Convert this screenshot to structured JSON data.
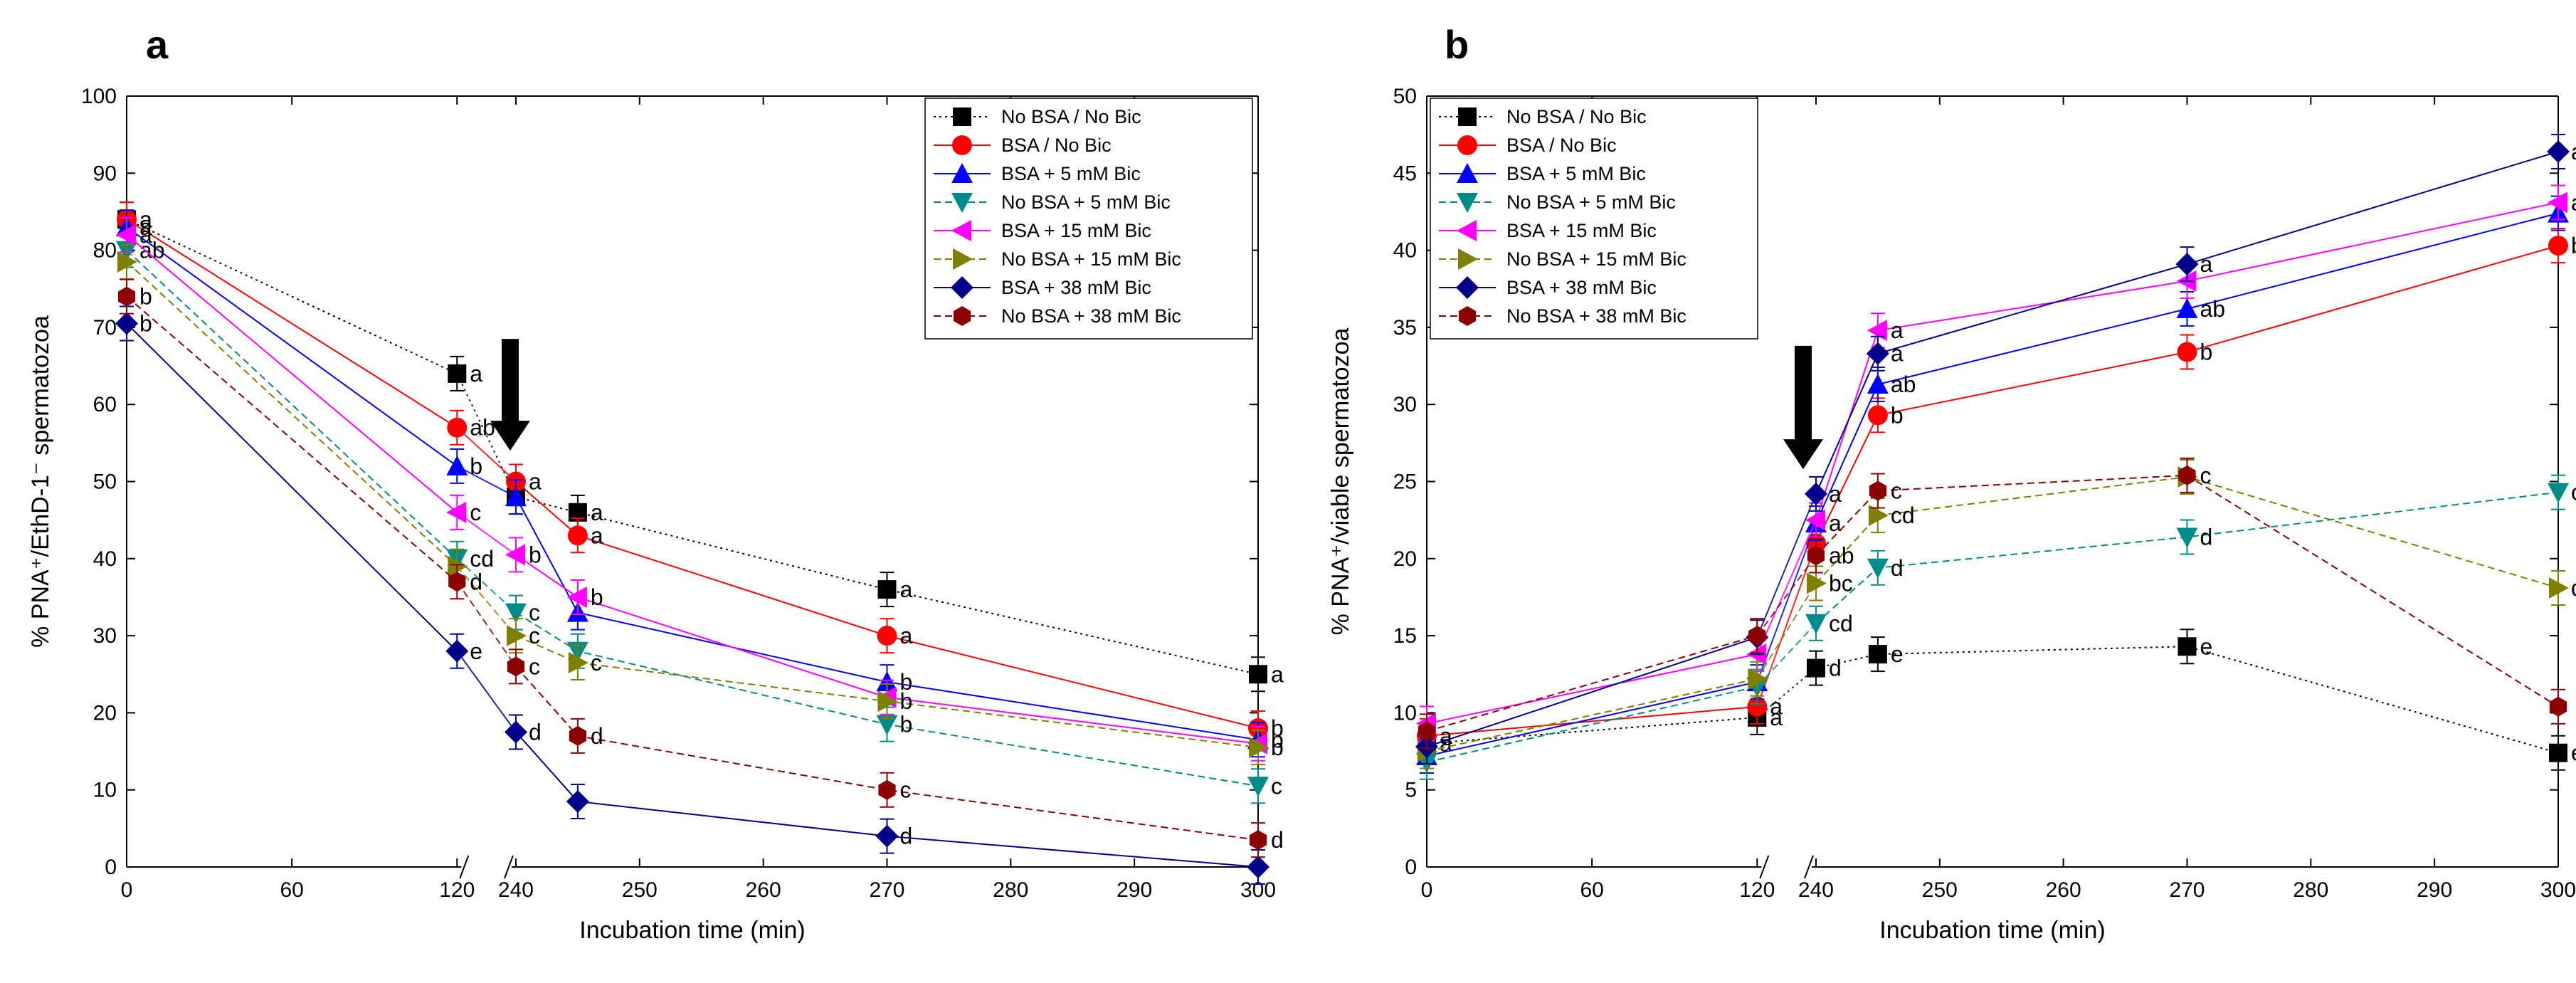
{
  "chart_data": [
    {
      "panel": "a",
      "type": "line",
      "ylabel": "% PNA⁺/EthD-1⁻ spermatozoa",
      "xlabel": "Incubation time (min)",
      "ylim": [
        0,
        100
      ],
      "yticks": [
        "0",
        "10",
        "20",
        "30",
        "40",
        "50",
        "60",
        "70",
        "80",
        "90",
        "100"
      ],
      "xticks": [
        "0",
        "60",
        "120",
        "240",
        "250",
        "260",
        "270",
        "280",
        "290",
        "300"
      ],
      "x": [
        0,
        120,
        240,
        245,
        270,
        300
      ],
      "legend": [
        "No BSA / No Bic",
        "BSA / No Bic",
        "BSA + 5 mM Bic",
        "No BSA + 5 mM Bic",
        "BSA + 15 mM Bic",
        "No BSA + 15 mM Bic",
        "BSA + 38 mM Bic",
        "No BSA  + 38 mM Bic"
      ],
      "series": [
        {
          "name": "No BSA / No Bic",
          "color": "#000000",
          "marker": "square",
          "dash": "dot",
          "values": [
            84,
            64,
            48,
            46,
            36,
            25
          ],
          "labels": [
            "a",
            "a",
            "",
            "a",
            "a",
            "a"
          ]
        },
        {
          "name": "BSA / No Bic",
          "color": "#ff0000",
          "marker": "circle",
          "dash": "solid",
          "values": [
            84,
            57,
            50,
            43,
            30,
            18
          ],
          "labels": [
            "a",
            "ab",
            "a",
            "a",
            "a",
            "b"
          ]
        },
        {
          "name": "BSA + 5 mM Bic",
          "color": "#0000ff",
          "marker": "triangle-up",
          "dash": "solid",
          "values": [
            83,
            52,
            48,
            33,
            24,
            16.5
          ],
          "labels": [
            "a",
            "b",
            "",
            "",
            "b",
            "b"
          ]
        },
        {
          "name": "No BSA + 5 mM Bic",
          "color": "#008b8b",
          "marker": "triangle-down",
          "dash": "dash",
          "values": [
            80,
            40,
            33,
            28,
            18.5,
            10.5
          ],
          "labels": [
            "ab",
            "cd",
            "c",
            "",
            "b",
            "c"
          ]
        },
        {
          "name": "BSA + 15 mM Bic",
          "color": "#ff00ff",
          "marker": "triangle-left",
          "dash": "solid",
          "values": [
            82,
            46,
            40.5,
            35,
            22,
            16
          ],
          "labels": [
            "a",
            "c",
            "b",
            "b",
            "",
            ""
          ]
        },
        {
          "name": "No BSA + 15 mM Bic",
          "color": "#808000",
          "marker": "triangle-right",
          "dash": "dash",
          "values": [
            78.5,
            39,
            30,
            26.5,
            21.5,
            15.5
          ],
          "labels": [
            "",
            "",
            "c",
            "c",
            "b",
            "b"
          ]
        },
        {
          "name": "BSA + 38 mM Bic",
          "color": "#00008b",
          "marker": "diamond",
          "dash": "solid",
          "values": [
            70.5,
            28,
            17.5,
            8.5,
            4,
            0
          ],
          "labels": [
            "b",
            "e",
            "d",
            "",
            "d",
            ""
          ]
        },
        {
          "name": "No BSA  + 38 mM Bic",
          "color": "#8b0000",
          "marker": "hexagon",
          "dash": "dash",
          "values": [
            74,
            37,
            26,
            17,
            10,
            3.5
          ],
          "labels": [
            "b",
            "d",
            "c",
            "d",
            "c",
            "d"
          ]
        }
      ]
    },
    {
      "panel": "b",
      "type": "line",
      "ylabel": "% PNA⁺/viable spermatozoa",
      "xlabel": "Incubation time (min)",
      "ylim": [
        0,
        50
      ],
      "yticks": [
        "0",
        "5",
        "10",
        "15",
        "20",
        "25",
        "30",
        "35",
        "40",
        "45",
        "50"
      ],
      "xticks": [
        "0",
        "60",
        "120",
        "240",
        "250",
        "260",
        "270",
        "280",
        "290",
        "300"
      ],
      "x": [
        0,
        120,
        240,
        245,
        270,
        300
      ],
      "legend": [
        "No BSA / No Bic",
        "BSA / No Bic",
        "BSA + 5 mM Bic",
        "No BSA + 5 mM Bic",
        "BSA + 15 mM Bic",
        "No BSA + 15 mM Bic",
        "BSA + 38 mM Bic",
        "No BSA  + 38 mM Bic"
      ],
      "series": [
        {
          "name": "No BSA / No Bic",
          "color": "#000000",
          "marker": "square",
          "dash": "dot",
          "values": [
            8,
            9.7,
            12.9,
            13.8,
            14.3,
            7.4
          ],
          "labels": [
            "a",
            "a",
            "d",
            "e",
            "e",
            "e"
          ]
        },
        {
          "name": "BSA / No Bic",
          "color": "#ff0000",
          "marker": "circle",
          "dash": "solid",
          "values": [
            8.5,
            10.4,
            21,
            29.3,
            33.4,
            40.3
          ],
          "labels": [
            "a",
            "a",
            "",
            "b",
            "b",
            "b"
          ]
        },
        {
          "name": "BSA + 5 mM Bic",
          "color": "#0000ff",
          "marker": "triangle-up",
          "dash": "solid",
          "values": [
            7.2,
            12,
            22.3,
            31.3,
            36.2,
            42.4
          ],
          "labels": [
            "",
            "",
            "a",
            "ab",
            "ab",
            ""
          ]
        },
        {
          "name": "No BSA + 5 mM Bic",
          "color": "#008b8b",
          "marker": "triangle-down",
          "dash": "dash",
          "values": [
            6.8,
            11.7,
            15.8,
            19.4,
            21.4,
            24.3
          ],
          "labels": [
            "",
            "",
            "cd",
            "d",
            "d",
            "c"
          ]
        },
        {
          "name": "BSA + 15 mM Bic",
          "color": "#ff00ff",
          "marker": "triangle-left",
          "dash": "solid",
          "values": [
            9.3,
            13.8,
            22.5,
            34.8,
            38,
            43.1
          ],
          "labels": [
            "",
            "",
            "",
            "a",
            "",
            "ab"
          ]
        },
        {
          "name": "No BSA + 15 mM Bic",
          "color": "#808000",
          "marker": "triangle-right",
          "dash": "dash",
          "values": [
            7.5,
            12.2,
            18.4,
            22.8,
            25.3,
            18.1
          ],
          "labels": [
            "",
            "",
            "bc",
            "cd",
            "",
            "d"
          ]
        },
        {
          "name": "BSA + 38 mM Bic",
          "color": "#00008b",
          "marker": "diamond",
          "dash": "solid",
          "values": [
            7.8,
            14.9,
            24.2,
            33.3,
            39.1,
            46.4
          ],
          "labels": [
            "",
            "",
            "a",
            "a",
            "a",
            "a"
          ]
        },
        {
          "name": "No BSA  + 38 mM Bic",
          "color": "#8b0000",
          "marker": "hexagon",
          "dash": "dash",
          "values": [
            8.8,
            15,
            20.2,
            24.4,
            25.4,
            10.4
          ],
          "labels": [
            "",
            "",
            "ab",
            "c",
            "c",
            ""
          ]
        }
      ]
    }
  ]
}
